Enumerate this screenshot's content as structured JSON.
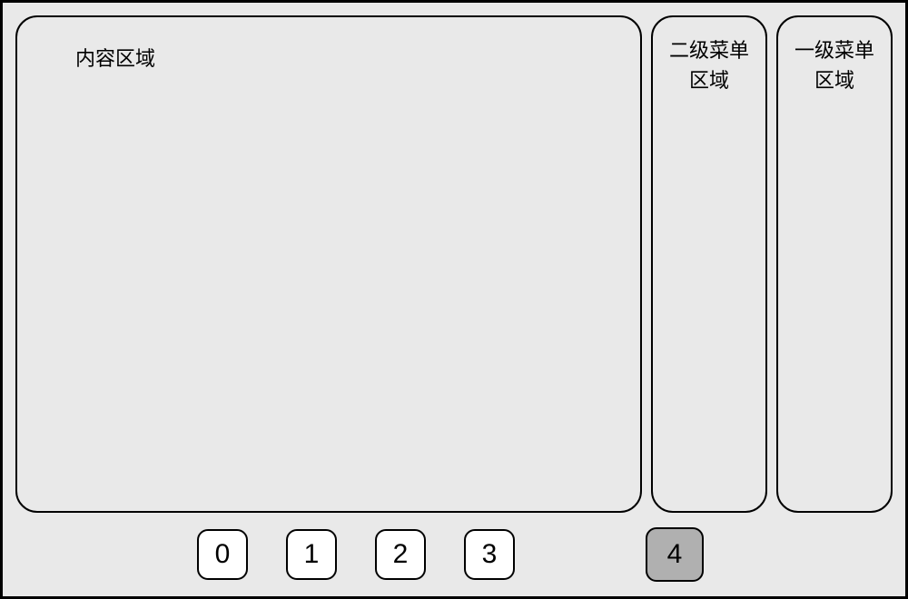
{
  "layout": {
    "outer_border_color": "#000000",
    "outer_border_width": 3,
    "background_color": "#e9e9e9",
    "panel_border_radius": 24,
    "panel_border_color": "#000000",
    "panel_border_width": 2
  },
  "content_area": {
    "label": "内容区域",
    "font_size": 22,
    "text_color": "#000000"
  },
  "secondary_menu": {
    "label_line1": "二级菜单",
    "label_line2": "区域",
    "font_size": 22,
    "text_color": "#000000"
  },
  "primary_menu": {
    "label_line1": "一级菜单",
    "label_line2": "区域",
    "font_size": 22,
    "text_color": "#000000"
  },
  "tabs": {
    "items": [
      {
        "label": "0",
        "active": false
      },
      {
        "label": "1",
        "active": false
      },
      {
        "label": "2",
        "active": false
      },
      {
        "label": "3",
        "active": false
      },
      {
        "label": "4",
        "active": true
      }
    ],
    "button": {
      "border_radius": 12,
      "border_color": "#000000",
      "border_width": 2,
      "inactive_bg": "#ffffff",
      "active_bg": "#b0b0b0",
      "font_size": 30,
      "text_color": "#000000"
    }
  }
}
